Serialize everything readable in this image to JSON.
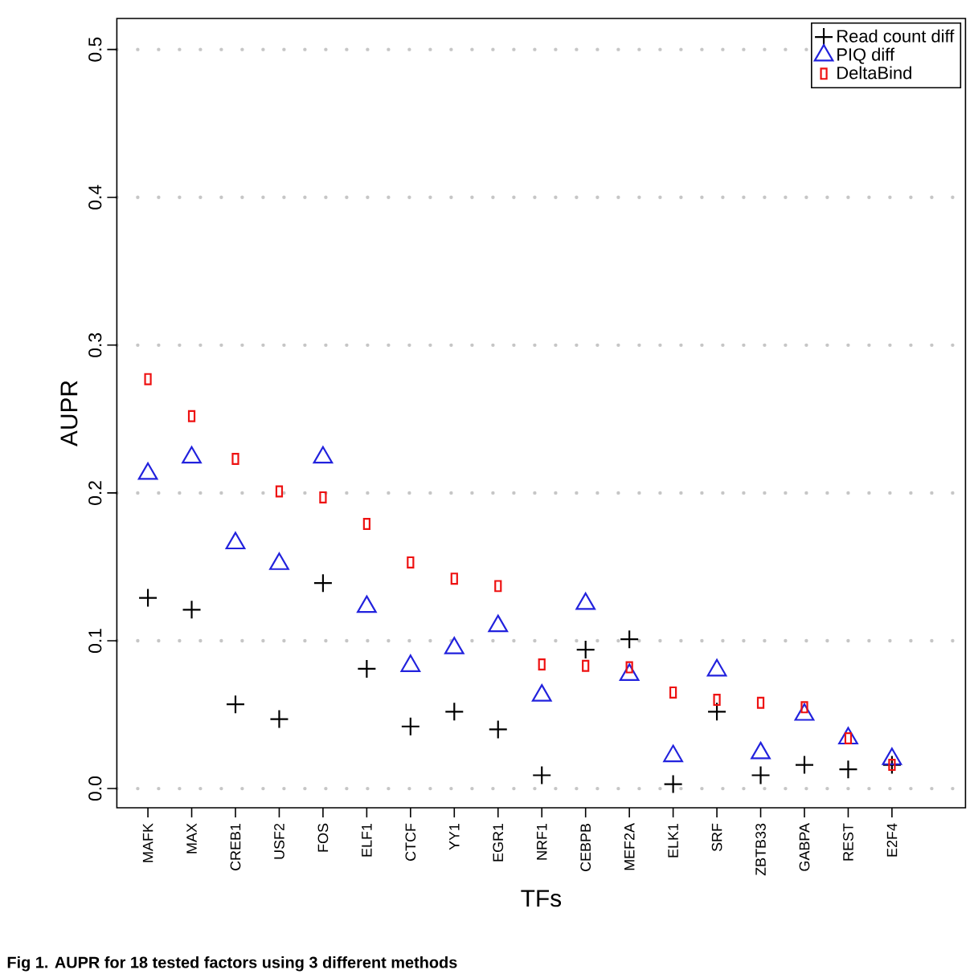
{
  "chart_data": {
    "type": "scatter",
    "xlabel": "TFs",
    "ylabel": "AUPR",
    "annotations": [
      "Fig 1. AUPR for 18 tested factors using 3 different methods"
    ],
    "categories": [
      "MAFK",
      "MAX",
      "CREB1",
      "USF2",
      "FOS",
      "ELF1",
      "CTCF",
      "YY1",
      "EGR1",
      "NRF1",
      "CEBPB",
      "MEF2A",
      "ELK1",
      "SRF",
      "ZBTB33",
      "GABPA",
      "REST",
      "E2F4"
    ],
    "series": [
      {
        "name": "Read count diff",
        "color": "#000000",
        "marker": "cross",
        "values": [
          0.129,
          0.121,
          0.057,
          0.047,
          0.139,
          0.081,
          0.042,
          0.052,
          0.04,
          0.009,
          0.094,
          0.101,
          0.003,
          0.052,
          0.009,
          0.016,
          0.013,
          0.016
        ]
      },
      {
        "name": "PIQ diff",
        "color": "#2222dd",
        "marker": "triangle",
        "values": [
          0.213,
          0.224,
          0.166,
          0.152,
          0.224,
          0.123,
          0.083,
          0.095,
          0.11,
          0.063,
          0.125,
          0.077,
          0.022,
          0.08,
          0.024,
          0.05,
          0.034,
          0.02
        ]
      },
      {
        "name": "DeltaBind",
        "color": "#ee1111",
        "marker": "square",
        "values": [
          0.277,
          0.252,
          0.223,
          0.201,
          0.197,
          0.179,
          0.153,
          0.142,
          0.137,
          0.084,
          0.083,
          0.082,
          0.065,
          0.06,
          0.058,
          0.055,
          0.034,
          0.016
        ]
      }
    ],
    "ylim": [
      -0.013,
      0.521
    ],
    "yticks": [
      {
        "value": 0,
        "label": "0.0"
      },
      0.1,
      0.2,
      0.3,
      0.4,
      0.5
    ],
    "grid": "y",
    "legend": "top right"
  }
}
